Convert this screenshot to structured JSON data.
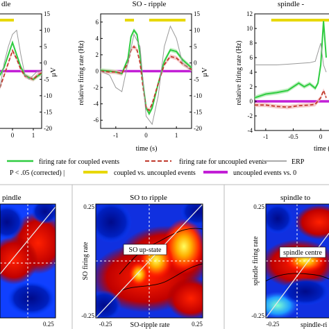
{
  "top_panels": {
    "left_title": "dle",
    "middle_title": "SO - ripple",
    "right_title": "spindle -",
    "xlabel": "time (s)",
    "ylabel_fr": "relative firing rate (Hz)",
    "ylabel_uv": "μV"
  },
  "legend": {
    "coupled": "firing rate for coupled events",
    "uncoupled": "firing rate for uncoupled events",
    "erp": "ERP",
    "sig_label": "P < .05 (corrected) |",
    "sig_coupled": "coupled vs. uncoupled events",
    "sig_zero": "uncoupled events vs. 0"
  },
  "bottom_panels": {
    "left_title": "pindle",
    "middle_title": "SO to ripple",
    "right_title": "spindle to",
    "middle_ylabel": "SO firing rate",
    "middle_xlabel": "SO-ripple rate",
    "middle_annotation": "SO up-state",
    "right_ylabel": "spindle firing rate",
    "right_xlabel": "spindle-ri",
    "right_annotation": "spindle centre",
    "left_tick": "0.25",
    "middle_tick_left": "-0.25",
    "middle_tick_right": "0.25",
    "middle_tick_top": "0.25",
    "middle_tick_bottom": "-0.25",
    "right_tick_top": "0.25",
    "right_tick_bottom": "-0.25",
    "right_tick_left": "-0.25"
  },
  "colors": {
    "coupled": "#2ecc40",
    "uncoupled": "#c0392b",
    "erp": "#999999",
    "sig_coupled": "#e8d800",
    "sig_zero": "#c21fd6"
  },
  "chart_data": [
    {
      "type": "line",
      "title": "",
      "xlabel": "",
      "ylabel": "",
      "x_ticks": [
        0,
        1
      ],
      "y_right_ticks": [
        15,
        10,
        5,
        0,
        -5,
        -10,
        -15,
        -20
      ],
      "y_right_label": "μV",
      "series": [
        {
          "name": "firing rate for coupled events",
          "x": [
            -0.6,
            -0.4,
            -0.2,
            0,
            0.2,
            0.4,
            0.6,
            0.8,
            1.0,
            1.2,
            1.4
          ],
          "y": [
            -0.5,
            0.5,
            2,
            3.5,
            2,
            0.5,
            -0.5,
            -0.8,
            -1,
            -0.6,
            -0.3
          ]
        },
        {
          "name": "firing rate for uncoupled events",
          "x": [
            -0.6,
            -0.4,
            -0.2,
            0,
            0.2,
            0.4,
            0.6,
            0.8,
            1.0,
            1.2,
            1.4
          ],
          "y": [
            -2,
            -0.5,
            1,
            2.5,
            1.5,
            0.2,
            -0.6,
            -0.8,
            -1,
            -0.5,
            -0.2
          ]
        },
        {
          "name": "ERP",
          "x": [
            -0.6,
            -0.4,
            -0.2,
            0,
            0.2,
            0.4,
            0.6,
            0.8,
            1.0,
            1.2,
            1.4
          ],
          "y": [
            -2,
            1,
            3,
            4.5,
            5,
            2,
            -0.5,
            -1,
            -0.5,
            0,
            0
          ]
        }
      ]
    },
    {
      "type": "line",
      "title": "SO - ripple",
      "xlabel": "time (s)",
      "ylabel": "relative firing rate (Hz)",
      "x_ticks": [
        -1,
        0,
        1
      ],
      "y_ticks": [
        6,
        4,
        2,
        0,
        -2,
        -4,
        -6
      ],
      "y_right_ticks": [
        15,
        10,
        5,
        0,
        -5,
        -10,
        -15,
        -20
      ],
      "y_right_label": "μV",
      "xlim": [
        -1.5,
        1.5
      ],
      "ylim": [
        -7,
        7
      ],
      "series": [
        {
          "name": "firing rate for coupled events",
          "x": [
            -1.5,
            -1.2,
            -1,
            -0.8,
            -0.6,
            -0.5,
            -0.4,
            -0.3,
            -0.2,
            -0.1,
            0,
            0.1,
            0.2,
            0.4,
            0.6,
            0.8,
            1,
            1.2,
            1.5
          ],
          "y": [
            0.1,
            0,
            -0.1,
            -0.3,
            1.5,
            4.2,
            5,
            4.5,
            2,
            -1.5,
            -4.5,
            -5.2,
            -4.5,
            -1.5,
            1.2,
            2.6,
            2.4,
            1.4,
            0.4
          ]
        },
        {
          "name": "firing rate for uncoupled events",
          "x": [
            -1.5,
            -1.2,
            -1,
            -0.8,
            -0.6,
            -0.5,
            -0.4,
            -0.3,
            -0.2,
            -0.1,
            0,
            0.1,
            0.2,
            0.4,
            0.6,
            0.8,
            1,
            1.2,
            1.5
          ],
          "y": [
            0,
            -0.1,
            -0.1,
            -0.3,
            1,
            2.6,
            3,
            2.6,
            1,
            -2,
            -4.5,
            -4.8,
            -4,
            -1.5,
            0.8,
            1.8,
            1.6,
            0.9,
            0.2
          ]
        },
        {
          "name": "ERP",
          "x": [
            -1.5,
            -1.2,
            -1,
            -0.8,
            -0.6,
            -0.4,
            -0.2,
            0,
            0.2,
            0.4,
            0.6,
            0.8,
            1,
            1.2,
            1.5
          ],
          "y": [
            0,
            -0.5,
            -2,
            -2.5,
            1,
            4.5,
            3,
            -5.5,
            -6.5,
            -3,
            3,
            5.5,
            4,
            1,
            0
          ]
        }
      ],
      "significance": {
        "coupled vs. uncoupled events": [
          [
            -0.7,
            -0.4
          ],
          [
            0.1,
            1.3
          ]
        ],
        "uncoupled events vs. 0": [
          [
            -1.5,
            1.5
          ]
        ]
      }
    },
    {
      "type": "line",
      "title": "spindle -",
      "xlabel": "time",
      "ylabel": "relative firing rate (Hz)",
      "x_ticks": [
        -1,
        -0.5,
        0
      ],
      "y_ticks": [
        12,
        10,
        8,
        6,
        4,
        2,
        0,
        -2,
        -4
      ],
      "xlim": [
        -1.2,
        0.15
      ],
      "ylim": [
        -4,
        12
      ],
      "series": [
        {
          "name": "firing rate for coupled events",
          "x": [
            -1.2,
            -1,
            -0.8,
            -0.6,
            -0.4,
            -0.3,
            -0.2,
            -0.1,
            -0.05,
            0,
            0.05,
            0.1
          ],
          "y": [
            0.5,
            1,
            1.2,
            1.5,
            2.5,
            2,
            2.4,
            1.8,
            2.5,
            5,
            11,
            6
          ]
        },
        {
          "name": "firing rate for uncoupled events",
          "x": [
            -1.2,
            -1,
            -0.8,
            -0.6,
            -0.4,
            -0.2,
            -0.1,
            0,
            0.05,
            0.1
          ],
          "y": [
            -0.5,
            -0.5,
            -0.7,
            -0.8,
            -0.6,
            -0.5,
            -0.4,
            0.5,
            1.5,
            0.5
          ]
        },
        {
          "name": "ERP",
          "x": [
            -1.2,
            -1,
            -0.8,
            -0.6,
            -0.4,
            -0.2,
            -0.1,
            0,
            0.05,
            0.1
          ],
          "y": [
            5,
            5,
            5,
            5.1,
            5.2,
            5.3,
            5.5,
            8,
            5,
            4
          ]
        }
      ],
      "significance": {
        "coupled vs. uncoupled events": [
          [
            -0.9,
            0.15
          ]
        ],
        "uncoupled events vs. 0": [
          [
            -1.2,
            0.15
          ]
        ]
      }
    },
    {
      "type": "heatmap",
      "title": "pindle",
      "x_ticks": [
        0.25
      ],
      "annotation": ""
    },
    {
      "type": "heatmap",
      "title": "SO to ripple",
      "xlabel": "SO-ripple rate",
      "ylabel": "SO firing rate",
      "xlim": [
        -0.25,
        0.25
      ],
      "ylim": [
        -0.25,
        0.25
      ],
      "annotation": "SO up-state"
    },
    {
      "type": "heatmap",
      "title": "spindle to",
      "xlabel": "spindle-ri",
      "ylabel": "spindle firing rate",
      "ylim": [
        -0.25,
        0.25
      ],
      "annotation": "spindle centre"
    }
  ]
}
